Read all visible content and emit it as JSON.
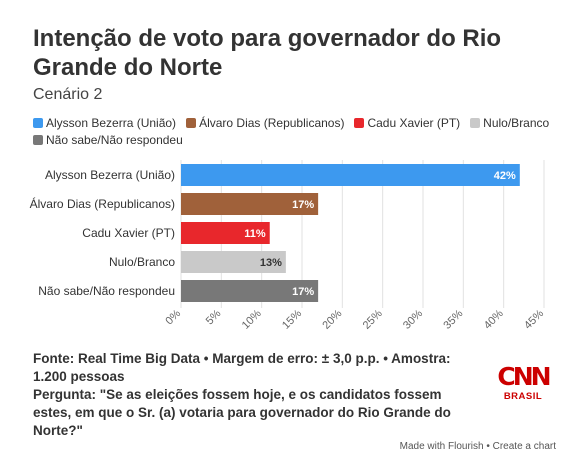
{
  "title": "Intenção de voto para governador do Rio Grande do Norte",
  "subtitle": "Cenário 2",
  "legend": [
    {
      "label": "Alysson Bezerra (União)",
      "color": "#3d99ef"
    },
    {
      "label": "Álvaro Dias (Republicanos)",
      "color": "#a0613a"
    },
    {
      "label": "Cadu Xavier (PT)",
      "color": "#e8272c"
    },
    {
      "label": "Nulo/Branco",
      "color": "#c9c9c9"
    },
    {
      "label": "Não sabe/Não respondeu",
      "color": "#787878"
    }
  ],
  "chart_data": {
    "type": "bar",
    "orientation": "horizontal",
    "categories": [
      "Alysson Bezerra (União)",
      "Álvaro Dias (Republicanos)",
      "Cadu Xavier (PT)",
      "Nulo/Branco",
      "Não sabe/Não respondeu"
    ],
    "values": [
      42,
      17,
      11,
      13,
      17
    ],
    "value_labels": [
      "42%",
      "17%",
      "11%",
      "13%",
      "17%"
    ],
    "colors": [
      "#3d99ef",
      "#a0613a",
      "#e8272c",
      "#c9c9c9",
      "#787878"
    ],
    "label_colors": [
      "#ffffff",
      "#ffffff",
      "#ffffff",
      "#333333",
      "#ffffff"
    ],
    "xlim": [
      0,
      45
    ],
    "xticks": [
      0,
      5,
      10,
      15,
      20,
      25,
      30,
      35,
      40,
      45
    ],
    "xtick_labels": [
      "0%",
      "5%",
      "10%",
      "15%",
      "20%",
      "25%",
      "30%",
      "35%",
      "40%",
      "45%"
    ],
    "grid": true
  },
  "footer": {
    "source": "Fonte: Real Time Big Data • Margem de erro: ± 3,0 p.p. • Amostra: 1.200 pessoas",
    "question": "Pergunta: \"Se as eleições fossem hoje, e os candidatos fossem estes, em que o Sr. (a) votaria para governador do Rio Grande do Norte?\""
  },
  "logo": {
    "word": "CNN",
    "sub": "BRASIL"
  },
  "credits": {
    "made_with": "Made with Flourish",
    "separator": " • ",
    "create": "Create a chart"
  }
}
